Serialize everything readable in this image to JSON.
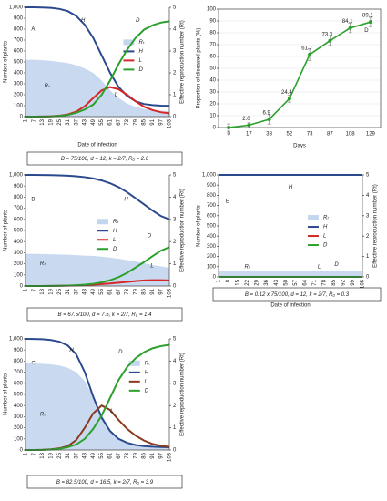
{
  "chart_data": [
    {
      "type": "epidemic",
      "panel": "A",
      "caption": "B = 75/100, d = 12, k = 2/7, R₀ = 2.6",
      "xlabel": "Date of infection",
      "ylabel": "Number of plants",
      "y2label": "Effective reproduction number (Rt)",
      "categories": [
        "1",
        "7",
        "13",
        "19",
        "25",
        "31",
        "37",
        "43",
        "49",
        "55",
        "61",
        "67",
        "73",
        "79",
        "85",
        "91",
        "97",
        "103"
      ],
      "ylim": [
        0,
        1000
      ],
      "yticks": [
        0,
        100,
        200,
        300,
        400,
        500,
        600,
        700,
        800,
        900,
        {
          "value": 1000,
          "label": "1,000"
        }
      ],
      "y2lim": [
        0,
        5
      ],
      "y2ticks": [
        0,
        1,
        2,
        3,
        4,
        5
      ],
      "series": [
        {
          "name": "Rₜ",
          "color": "#c3d6ee",
          "axis": "y2",
          "values": [
            2.6,
            2.6,
            2.58,
            2.55,
            2.5,
            2.45,
            2.35,
            2.2,
            2.0,
            1.65,
            1.2,
            0.85,
            0.6,
            0.45,
            0.35,
            0.3,
            0.27,
            0.25
          ]
        },
        {
          "name": "H",
          "color": "#2b4a8e",
          "values": [
            1000,
            1000,
            998,
            995,
            985,
            965,
            920,
            840,
            720,
            560,
            400,
            270,
            190,
            140,
            115,
            105,
            100,
            98
          ]
        },
        {
          "name": "L",
          "color": "#d62728",
          "values": [
            0,
            0,
            1,
            3,
            8,
            20,
            45,
            95,
            170,
            240,
            270,
            250,
            200,
            140,
            90,
            60,
            40,
            30
          ]
        },
        {
          "name": "D",
          "color": "#2ca02c",
          "values": [
            0,
            0,
            1,
            2,
            7,
            15,
            35,
            65,
            110,
            200,
            330,
            480,
            610,
            720,
            795,
            835,
            860,
            872
          ]
        }
      ]
    },
    {
      "type": "errorline",
      "panel": "D",
      "xlabel": "Days",
      "ylabel": "Proportion of diseased plants (%)",
      "categories": [
        "0",
        "17",
        "38",
        "52",
        "73",
        "87",
        "108",
        "129"
      ],
      "ylim": [
        0,
        100
      ],
      "yticks": [
        0,
        10,
        20,
        30,
        40,
        50,
        60,
        70,
        80,
        90,
        100
      ],
      "color": "#2ca02c",
      "values": [
        0,
        2,
        6.9,
        24.4,
        61.7,
        73.3,
        84.1,
        89.1
      ],
      "value_labels": [
        null,
        "2.0",
        "6.9",
        "24.4",
        "61.7",
        "73.3",
        "84.1",
        "89.1"
      ],
      "errors": [
        3,
        2,
        4,
        3,
        5,
        4,
        4,
        4
      ]
    },
    {
      "type": "epidemic",
      "panel": "B",
      "caption": "B = 67.5/100, d = 7.5, k = 2/7, R₀ = 1.4",
      "xlabel": "Date of infection",
      "ylabel": "Number of plants",
      "y2label": "Effective reproduction number (Rt)",
      "categories": [
        "1",
        "7",
        "13",
        "19",
        "25",
        "31",
        "37",
        "43",
        "49",
        "55",
        "61",
        "67",
        "73",
        "79",
        "85",
        "91",
        "97",
        "103"
      ],
      "ylim": [
        0,
        1000
      ],
      "yticks": [
        0,
        100,
        200,
        300,
        400,
        500,
        600,
        700,
        800,
        900,
        {
          "value": 1000,
          "label": "1,000"
        }
      ],
      "y2lim": [
        0,
        5
      ],
      "y2ticks": [
        0,
        1,
        2,
        3,
        4,
        5
      ],
      "series": [
        {
          "name": "Rₜ",
          "color": "#c3d6ee",
          "axis": "y2",
          "values": [
            1.45,
            1.45,
            1.44,
            1.43,
            1.42,
            1.41,
            1.39,
            1.37,
            1.35,
            1.32,
            1.28,
            1.23,
            1.17,
            1.1,
            1.03,
            0.95,
            0.88,
            0.82
          ]
        },
        {
          "name": "H",
          "color": "#2b4a8e",
          "values": [
            1000,
            1000,
            999,
            998,
            996,
            993,
            988,
            980,
            968,
            950,
            925,
            890,
            845,
            790,
            735,
            680,
            630,
            600
          ]
        },
        {
          "name": "L",
          "color": "#d62728",
          "values": [
            0,
            0,
            0,
            1,
            2,
            3,
            5,
            8,
            12,
            17,
            23,
            30,
            37,
            44,
            50,
            52,
            52,
            50
          ]
        },
        {
          "name": "D",
          "color": "#2ca02c",
          "values": [
            0,
            0,
            0,
            1,
            2,
            4,
            7,
            12,
            20,
            33,
            52,
            80,
            118,
            166,
            215,
            268,
            318,
            350
          ]
        }
      ]
    },
    {
      "type": "epidemic",
      "panel": "E",
      "caption": "B = 0.12 x 75/100, d = 12, k = 2/7, R₀ = 0.3",
      "xlabel": "Date of infection",
      "ylabel": "Number of plants",
      "y2label": "Effective reproduction number (Rt)",
      "categories": [
        "1",
        "8",
        "15",
        "22",
        "29",
        "36",
        "43",
        "50",
        "57",
        "64",
        "71",
        "78",
        "85",
        "92",
        "99",
        "106"
      ],
      "ylim": [
        0,
        1000
      ],
      "yticks": [
        0,
        100,
        200,
        300,
        400,
        500,
        600,
        700,
        800,
        900,
        {
          "value": 1000,
          "label": "1,000"
        }
      ],
      "y2lim": [
        0,
        5
      ],
      "y2ticks": [
        0,
        1,
        2,
        3,
        4,
        5
      ],
      "series": [
        {
          "name": "Rₜ",
          "color": "#c3d6ee",
          "axis": "y2",
          "values": [
            0.3,
            0.3,
            0.3,
            0.3,
            0.3,
            0.3,
            0.3,
            0.3,
            0.3,
            0.3,
            0.3,
            0.3,
            0.3,
            0.3,
            0.3,
            0.3
          ]
        },
        {
          "name": "H",
          "color": "#2b4a8e",
          "values": [
            1000,
            1000,
            1000,
            1000,
            1000,
            1000,
            1000,
            1000,
            1000,
            1000,
            1000,
            1000,
            1000,
            1000,
            1000,
            1000
          ]
        },
        {
          "name": "L",
          "color": "#d62728",
          "values": [
            0,
            0,
            0,
            0,
            0,
            0,
            0,
            0,
            0,
            0,
            0,
            0,
            0,
            0,
            0,
            0
          ]
        },
        {
          "name": "D",
          "color": "#2ca02c",
          "values": [
            0,
            0,
            0,
            0,
            0,
            0,
            0,
            0,
            0,
            0,
            0,
            0,
            0,
            0,
            0,
            0
          ]
        }
      ]
    },
    {
      "type": "epidemic",
      "panel": "C",
      "caption": "B = 82.5/100, d = 16.5, k = 2/7, R₀ = 3.9",
      "xlabel": "Date of infection",
      "ylabel": "Number of plants",
      "y2label": "Effective reproduction number (Rt)",
      "categories": [
        "1",
        "7",
        "13",
        "19",
        "25",
        "31",
        "37",
        "43",
        "49",
        "55",
        "61",
        "67",
        "73",
        "79",
        "85",
        "91",
        "97",
        "103"
      ],
      "ylim": [
        0,
        1000
      ],
      "yticks": [
        0,
        100,
        200,
        300,
        400,
        500,
        600,
        700,
        800,
        900,
        {
          "value": 1000,
          "label": "1,000"
        }
      ],
      "y2lim": [
        0,
        5
      ],
      "y2ticks": [
        0,
        1,
        2,
        3,
        4,
        5
      ],
      "series": [
        {
          "name": "Rₜ",
          "color": "#c3d6ee",
          "axis": "y2",
          "values": [
            3.9,
            3.9,
            3.88,
            3.85,
            3.8,
            3.7,
            3.5,
            3.1,
            2.4,
            1.6,
            0.9,
            0.5,
            0.3,
            0.2,
            0.15,
            0.12,
            0.1,
            0.1
          ]
        },
        {
          "name": "H",
          "color": "#2b4a8e",
          "values": [
            1000,
            999,
            997,
            990,
            975,
            940,
            860,
            700,
            480,
            290,
            170,
            100,
            65,
            45,
            35,
            30,
            27,
            25
          ]
        },
        {
          "name": "L",
          "color": "#8b3a1e",
          "values": [
            0,
            0,
            2,
            6,
            15,
            35,
            90,
            200,
            330,
            400,
            360,
            270,
            190,
            130,
            85,
            55,
            38,
            28
          ]
        },
        {
          "name": "D",
          "color": "#2ca02c",
          "values": [
            0,
            0,
            1,
            4,
            10,
            25,
            50,
            100,
            190,
            310,
            470,
            630,
            745,
            825,
            880,
            915,
            935,
            947
          ]
        }
      ]
    }
  ]
}
